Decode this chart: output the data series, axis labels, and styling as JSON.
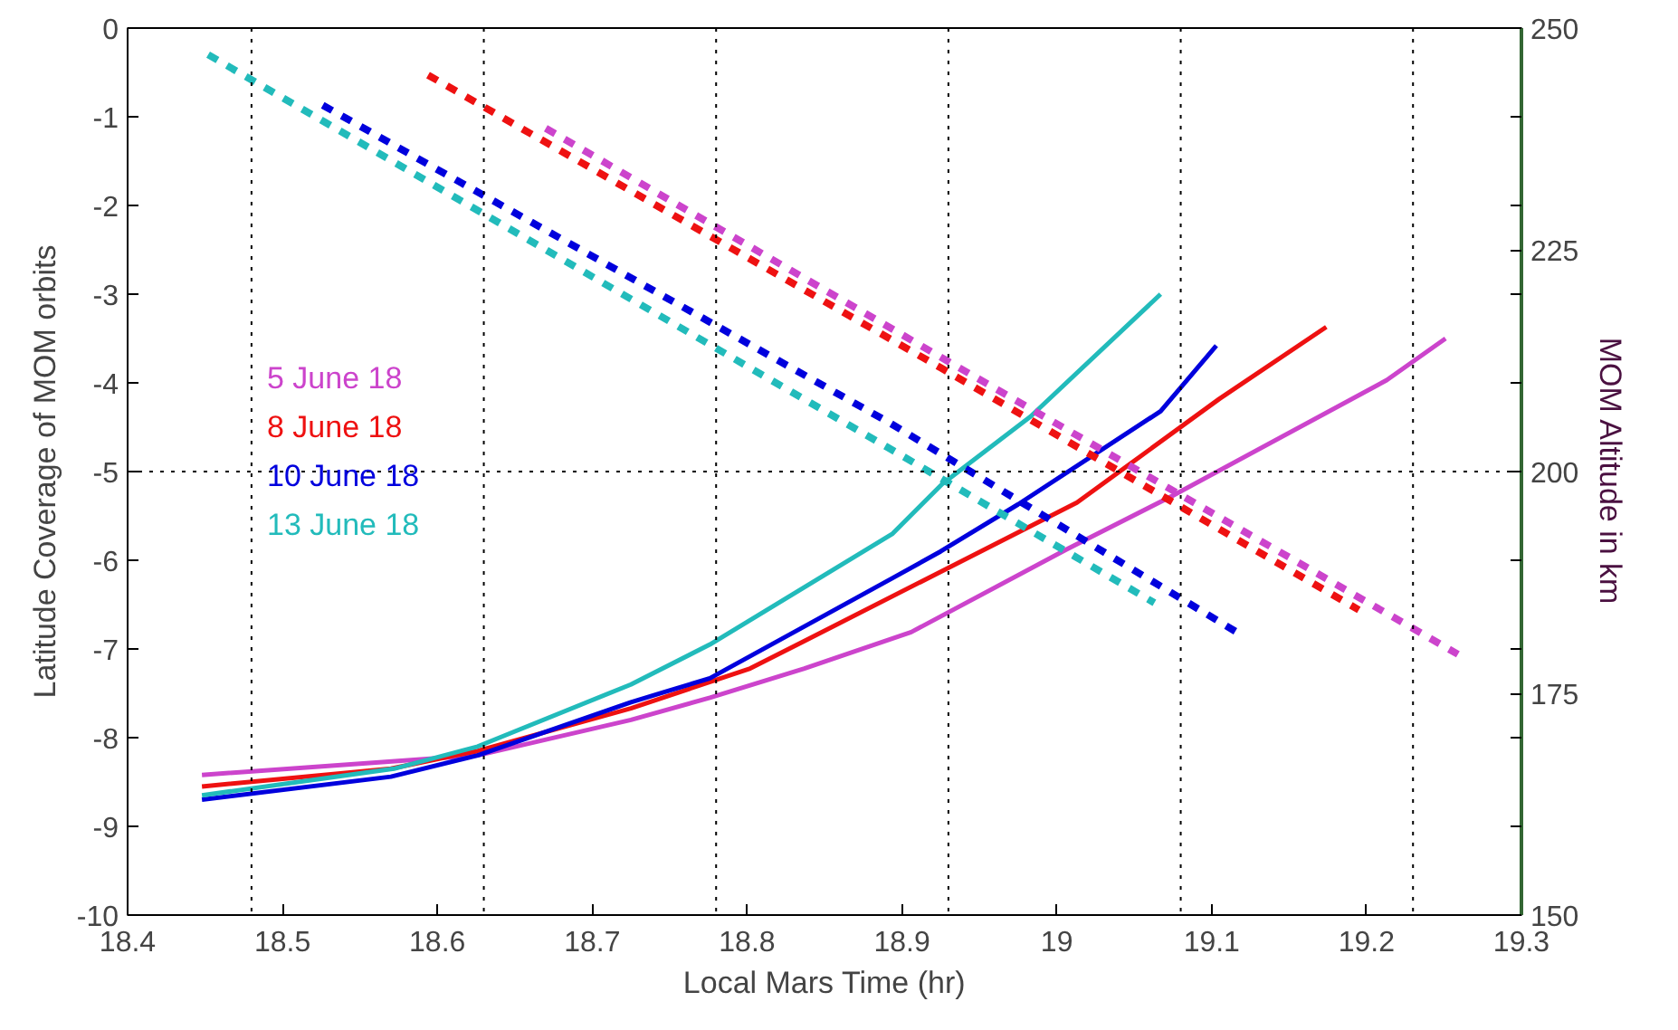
{
  "chart_data": {
    "type": "line",
    "xlabel": "Local Mars Time (hr)",
    "ylabel": "Latitude Coverage of MOM orbits",
    "y2label": "MOM Altitude in km",
    "xlim": [
      18.4,
      19.3
    ],
    "xticks": [
      18.4,
      18.5,
      18.6,
      18.7,
      18.8,
      18.9,
      19,
      19.1,
      19.2,
      19.3
    ],
    "ylim": [
      -10,
      0
    ],
    "yticks": [
      -10,
      -9,
      -8,
      -7,
      -6,
      -5,
      -4,
      -3,
      -2,
      -1,
      0
    ],
    "y2lim": [
      150,
      250
    ],
    "y2ticks": [
      150,
      {
        "value": 160,
        "label": null
      },
      {
        "value": 170,
        "label": null
      },
      175,
      {
        "value": 180,
        "label": null
      },
      {
        "value": 190,
        "label": null
      },
      200,
      {
        "value": 210,
        "label": null
      },
      {
        "value": 220,
        "label": null
      },
      225,
      {
        "value": 230,
        "label": null
      },
      {
        "value": 240,
        "label": null
      },
      250
    ],
    "grid": false,
    "legend": "left",
    "marker": "none",
    "ref_lines": [
      {
        "axis": "x",
        "value": 18.48,
        "label": null,
        "color": "#000000",
        "line_style": "dotted"
      },
      {
        "axis": "x",
        "value": 18.63,
        "label": null,
        "color": "#000000",
        "line_style": "dotted"
      },
      {
        "axis": "x",
        "value": 18.78,
        "label": null,
        "color": "#000000",
        "line_style": "dotted"
      },
      {
        "axis": "x",
        "value": 18.93,
        "label": null,
        "color": "#000000",
        "line_style": "dotted"
      },
      {
        "axis": "x",
        "value": 19.08,
        "label": null,
        "color": "#000000",
        "line_style": "dotted"
      },
      {
        "axis": "x",
        "value": 19.23,
        "label": null,
        "color": "#000000",
        "line_style": "dotted"
      },
      {
        "axis": "y",
        "value": -5,
        "label": null,
        "color": "#000000",
        "line_style": "dotted"
      }
    ],
    "series": [
      {
        "name": "5 June 18",
        "color": "#cc44cc",
        "axis": "y2",
        "line_style": "solid",
        "x": [
          18.448,
          18.626,
          18.725,
          18.776,
          18.837,
          18.906,
          19.006,
          19.075,
          19.213,
          19.251
        ],
        "values": [
          165.8,
          168,
          172,
          174.5,
          177.8,
          181.9,
          191.2,
          197.3,
          210.3,
          215
        ]
      },
      {
        "name": "8 June 18",
        "color": "#ee1111",
        "axis": "y2",
        "line_style": "solid",
        "x": [
          18.448,
          18.57,
          18.626,
          18.725,
          18.802,
          18.837,
          18.925,
          19.013,
          19.105,
          19.174
        ],
        "values": [
          164.5,
          166.5,
          168.5,
          173.3,
          177.8,
          180.9,
          188.7,
          196.5,
          208.2,
          216.3
        ]
      },
      {
        "name": "10 June 18",
        "color": "#0000dd",
        "axis": "y2",
        "line_style": "solid",
        "x": [
          18.448,
          18.57,
          18.626,
          18.725,
          18.776,
          18.894,
          18.925,
          18.975,
          19.067,
          19.103
        ],
        "values": [
          163,
          165.6,
          168,
          174,
          176.7,
          188,
          191,
          196.3,
          206.8,
          214.2
        ]
      },
      {
        "name": "13 June 18",
        "color": "#22bbbb",
        "axis": "y2",
        "line_style": "solid",
        "x": [
          18.448,
          18.572,
          18.626,
          18.725,
          18.776,
          18.894,
          18.926,
          18.983,
          19.067
        ],
        "values": [
          163.5,
          166.5,
          169,
          176,
          180.5,
          193,
          198.6,
          206.2,
          220
        ]
      },
      {
        "color": "#cc44cc",
        "line_style": "dashed",
        "x": [
          18.67,
          18.929,
          19.259
        ],
        "values": [
          -1.13,
          -3.75,
          -7.06
        ]
      },
      {
        "color": "#ee1111",
        "line_style": "dashed",
        "x": [
          18.594,
          18.925,
          19.195
        ],
        "values": [
          -0.53,
          -3.83,
          -6.56
        ]
      },
      {
        "color": "#0000dd",
        "line_style": "dashed",
        "x": [
          18.526,
          18.892,
          19.118
        ],
        "values": [
          -0.87,
          -4.45,
          -6.83
        ]
      },
      {
        "color": "#22bbbb",
        "line_style": "dashed",
        "x": [
          18.452,
          18.891,
          19.063
        ],
        "values": [
          -0.3,
          -4.73,
          -6.48
        ]
      }
    ]
  }
}
